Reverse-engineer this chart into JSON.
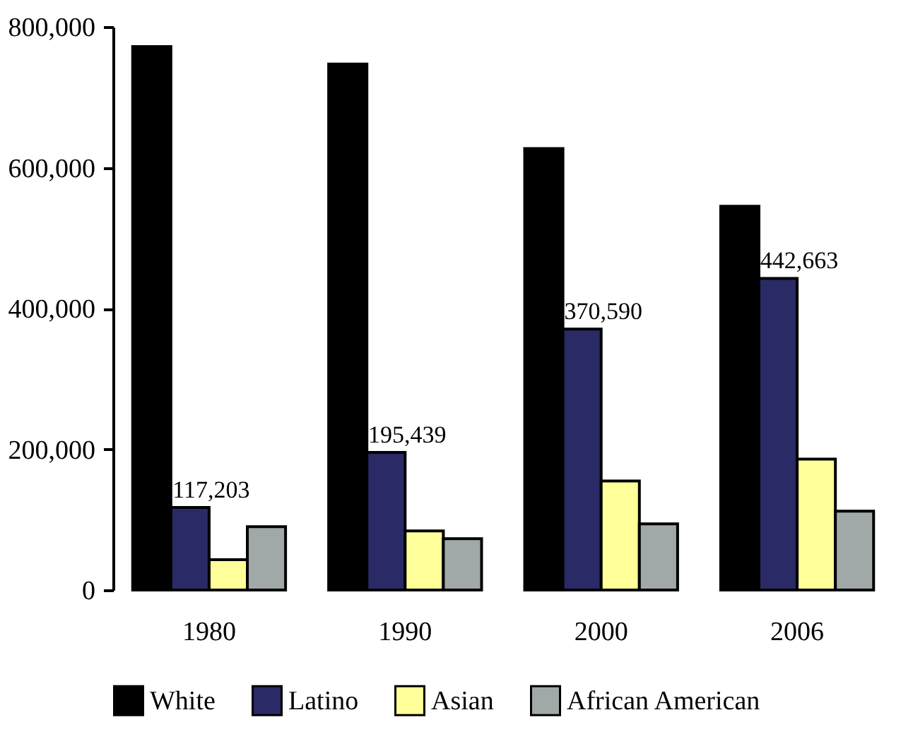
{
  "chart_data": {
    "type": "bar",
    "categories": [
      "1980",
      "1990",
      "2000",
      "2006"
    ],
    "series": [
      {
        "name": "White",
        "color": "#000000",
        "values": [
          772000,
          747000,
          627000,
          545000
        ]
      },
      {
        "name": "Latino",
        "color": "#2a2a66",
        "values": [
          117203,
          195439,
          370590,
          442663
        ],
        "value_labels": [
          "117,203",
          "195,439",
          "370,590",
          "442,663"
        ]
      },
      {
        "name": "Asian",
        "color": "#ffff99",
        "values": [
          43000,
          84000,
          155000,
          186000
        ]
      },
      {
        "name": "African American",
        "color": "#a0a8a8",
        "values": [
          90000,
          73000,
          94000,
          112000
        ]
      }
    ],
    "ylim": [
      0,
      800000
    ],
    "yticks": [
      0,
      {
        "value": 200000,
        "label": "200,000"
      },
      {
        "value": 400000,
        "label": "400,000"
      },
      {
        "value": 600000,
        "label": "600,000"
      },
      {
        "value": 800000,
        "label": "800,000"
      }
    ],
    "grid": false,
    "legend": "bottom"
  }
}
